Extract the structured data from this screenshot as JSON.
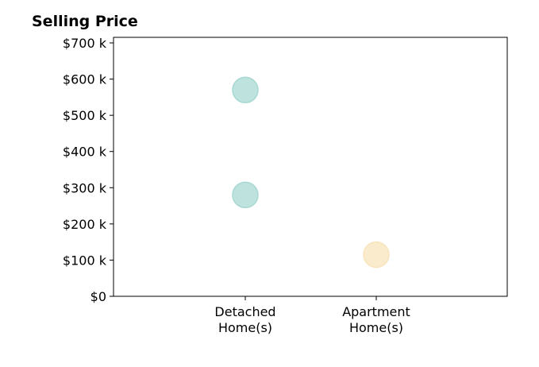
{
  "chart_data": {
    "type": "scatter",
    "title": "Selling Price",
    "xlabel": "",
    "ylabel": "",
    "categories": [
      [
        "Detached",
        "Home(s)"
      ],
      [
        "Apartment",
        "Home(s)"
      ]
    ],
    "ylim": [
      0,
      700
    ],
    "y_ticks": [
      0,
      100,
      200,
      300,
      400,
      500,
      600,
      700
    ],
    "y_tick_labels": [
      "$0",
      "$100 k",
      "$200 k",
      "$300 k",
      "$400 k",
      "$500 k",
      "$600 k",
      "$700 k"
    ],
    "points": [
      {
        "category": 0,
        "y": 570,
        "color": "#a8d8d2"
      },
      {
        "category": 0,
        "y": 280,
        "color": "#a8d8d2"
      },
      {
        "category": 1,
        "y": 115,
        "color": "#f8e4bc"
      }
    ],
    "grid": false,
    "legend": "none"
  }
}
